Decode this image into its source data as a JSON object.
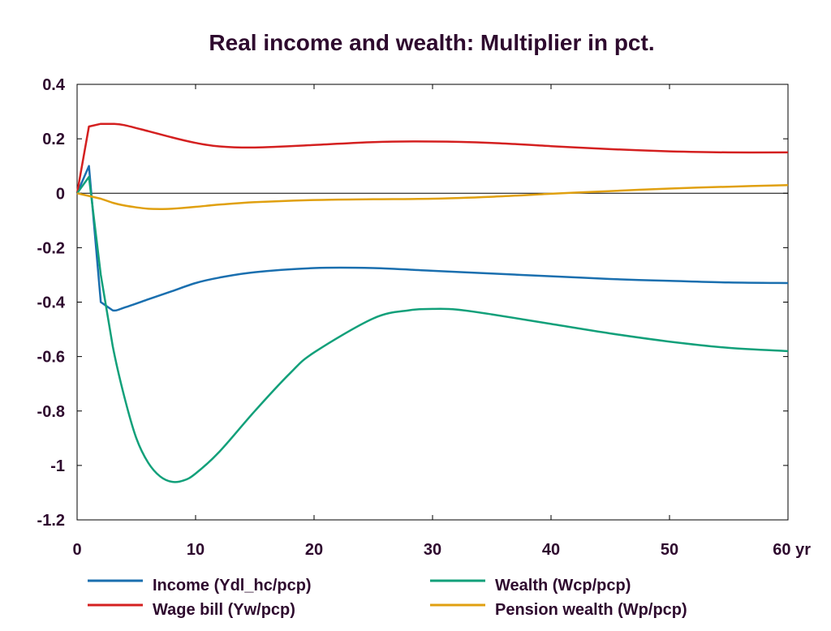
{
  "chart_data": {
    "type": "line",
    "title": "Real income and wealth: Multiplier in pct.",
    "xlabel": "",
    "ylabel": "",
    "xlim": [
      0,
      60
    ],
    "ylim": [
      -1.2,
      0.4
    ],
    "x_ticks": [
      "0",
      "10",
      "20",
      "30",
      "40",
      "50",
      "60 yr"
    ],
    "x_tick_values": [
      0,
      10,
      20,
      30,
      40,
      50,
      60
    ],
    "y_ticks": [
      "0.4",
      "0.2",
      "0",
      "-0.2",
      "-0.4",
      "-0.6",
      "-0.8",
      "-1",
      "-1.2"
    ],
    "y_tick_values": [
      0.4,
      0.2,
      0,
      -0.2,
      -0.4,
      -0.6,
      -0.8,
      -1,
      -1.2
    ],
    "zero_line": true,
    "grid": false,
    "legend_position": "bottom",
    "series": [
      {
        "name": "Income (Ydl_hc/pcp)",
        "color": "#1a6faf",
        "x": [
          0,
          1,
          2,
          3,
          4,
          6,
          8,
          10,
          12,
          15,
          20,
          25,
          30,
          35,
          40,
          45,
          50,
          55,
          60
        ],
        "y": [
          0,
          0.1,
          -0.4,
          -0.43,
          -0.42,
          -0.39,
          -0.36,
          -0.33,
          -0.31,
          -0.29,
          -0.275,
          -0.275,
          -0.285,
          -0.295,
          -0.305,
          -0.315,
          -0.322,
          -0.328,
          -0.33
        ]
      },
      {
        "name": "Wage bill (Yw/pcp)",
        "color": "#d42020",
        "x": [
          0,
          1,
          2,
          3,
          4,
          6,
          8,
          10,
          12,
          15,
          20,
          25,
          30,
          35,
          40,
          45,
          50,
          55,
          60
        ],
        "y": [
          0,
          0.245,
          0.255,
          0.255,
          0.25,
          0.228,
          0.205,
          0.185,
          0.172,
          0.168,
          0.177,
          0.188,
          0.19,
          0.185,
          0.173,
          0.162,
          0.154,
          0.15,
          0.15
        ]
      },
      {
        "name": "Wealth (Wcp/pcp)",
        "color": "#12a07a",
        "x": [
          0,
          1,
          2,
          3,
          4,
          5,
          6,
          7,
          8,
          9,
          10,
          12,
          15,
          18,
          20,
          25,
          28,
          30,
          32,
          35,
          40,
          45,
          50,
          55,
          60
        ],
        "y": [
          0,
          0.06,
          -0.3,
          -0.56,
          -0.75,
          -0.9,
          -0.99,
          -1.04,
          -1.06,
          -1.055,
          -1.03,
          -0.95,
          -0.8,
          -0.66,
          -0.585,
          -0.46,
          -0.43,
          -0.425,
          -0.427,
          -0.445,
          -0.48,
          -0.515,
          -0.545,
          -0.568,
          -0.58
        ]
      },
      {
        "name": "Pension wealth (Wp/pcp)",
        "color": "#e0a010",
        "x": [
          0,
          1,
          2,
          3,
          4,
          5,
          6,
          7,
          8,
          10,
          12,
          15,
          20,
          25,
          30,
          35,
          40,
          45,
          50,
          55,
          60
        ],
        "y": [
          0,
          -0.01,
          -0.02,
          -0.035,
          -0.045,
          -0.052,
          -0.057,
          -0.058,
          -0.057,
          -0.05,
          -0.042,
          -0.033,
          -0.025,
          -0.022,
          -0.02,
          -0.013,
          -0.002,
          0.008,
          0.017,
          0.024,
          0.03
        ]
      }
    ]
  }
}
